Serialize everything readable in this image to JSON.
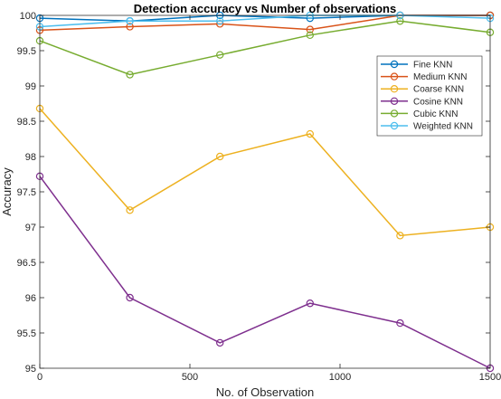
{
  "chart_data": {
    "type": "line",
    "title": "Detection accuracy vs Number of observations",
    "xlabel": "No. of Observation",
    "ylabel": "Accuracy",
    "xlim": [
      0,
      1500
    ],
    "ylim": [
      95,
      100
    ],
    "xticks": [
      0,
      500,
      1000,
      1500
    ],
    "yticks": [
      95,
      95.5,
      96,
      96.5,
      97,
      97.5,
      98,
      98.5,
      99,
      99.5,
      100
    ],
    "x": [
      0,
      300,
      600,
      900,
      1200,
      1500
    ],
    "grid": false,
    "legend_position": "top-right",
    "series": [
      {
        "name": "Fine KNN",
        "color": "#0072BD",
        "values": [
          99.96,
          99.92,
          100.0,
          99.96,
          100.0,
          100.0
        ]
      },
      {
        "name": "Medium KNN",
        "color": "#D95319",
        "values": [
          99.79,
          99.84,
          99.88,
          99.8,
          100.0,
          100.0
        ]
      },
      {
        "name": "Coarse KNN",
        "color": "#EDB120",
        "values": [
          98.68,
          97.24,
          98.0,
          98.32,
          96.88,
          97.0
        ]
      },
      {
        "name": "Cosine KNN",
        "color": "#7E2F8E",
        "values": [
          97.72,
          96.0,
          95.36,
          95.92,
          95.64,
          95.0
        ]
      },
      {
        "name": "Cubic KNN",
        "color": "#77AC30",
        "values": [
          99.64,
          99.16,
          99.44,
          99.72,
          99.92,
          99.76
        ]
      },
      {
        "name": "Weighted KNN",
        "color": "#4DBEEE",
        "values": [
          99.84,
          99.92,
          99.92,
          100.0,
          100.0,
          99.96
        ]
      }
    ]
  }
}
